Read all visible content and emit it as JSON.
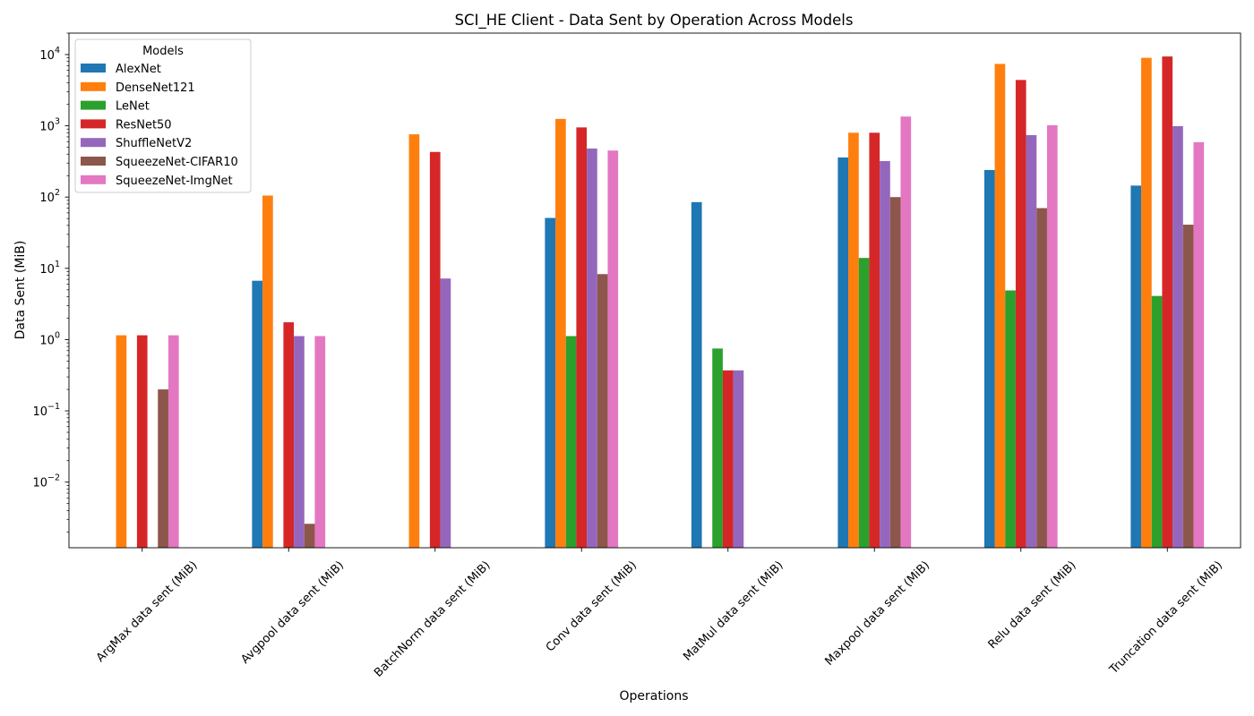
{
  "chart_data": {
    "type": "bar",
    "title": "SCI_HE Client - Data Sent by Operation Across Models",
    "xlabel": "Operations",
    "ylabel": "Data Sent (MiB)",
    "yscale": "log",
    "ylim": [
      0.0012,
      20000
    ],
    "legend_title": "Models",
    "legend_position": "top-left",
    "categories": [
      "ArgMax data sent (MiB)",
      "Avgpool data sent (MiB)",
      "BatchNorm data sent (MiB)",
      "Conv data sent (MiB)",
      "MatMul data sent (MiB)",
      "Maxpool data sent (MiB)",
      "Relu data sent (MiB)",
      "Truncation data sent (MiB)"
    ],
    "y_ticks": [
      {
        "value": 0.01,
        "base": "10",
        "exp": "−2"
      },
      {
        "value": 0.1,
        "base": "10",
        "exp": "−1"
      },
      {
        "value": 1,
        "base": "10",
        "exp": "0"
      },
      {
        "value": 10,
        "base": "10",
        "exp": "1"
      },
      {
        "value": 100,
        "base": "10",
        "exp": "2"
      },
      {
        "value": 1000,
        "base": "10",
        "exp": "3"
      },
      {
        "value": 10000,
        "base": "10",
        "exp": "4"
      }
    ],
    "series": [
      {
        "name": "AlexNet",
        "color": "#1f77b4",
        "values": [
          null,
          6.7,
          null,
          51,
          85,
          360,
          240,
          145
        ]
      },
      {
        "name": "DenseNet121",
        "color": "#ff7f0e",
        "values": [
          1.15,
          105,
          760,
          1250,
          null,
          800,
          7400,
          9000
        ]
      },
      {
        "name": "LeNet",
        "color": "#2ca02c",
        "values": [
          null,
          null,
          null,
          1.12,
          0.75,
          14,
          4.9,
          4.1
        ]
      },
      {
        "name": "ResNet50",
        "color": "#d62728",
        "values": [
          1.15,
          1.75,
          430,
          950,
          0.37,
          800,
          4400,
          9400
        ]
      },
      {
        "name": "ShuffleNetV2",
        "color": "#9467bd",
        "values": [
          null,
          1.12,
          7.2,
          480,
          0.37,
          320,
          740,
          990
        ]
      },
      {
        "name": "SqueezeNet-CIFAR10",
        "color": "#8c564b",
        "values": [
          0.2,
          0.0026,
          null,
          8.3,
          null,
          100,
          70,
          41
        ]
      },
      {
        "name": "SqueezeNet-ImgNet",
        "color": "#e377c2",
        "values": [
          1.15,
          1.12,
          null,
          450,
          null,
          1350,
          1020,
          590
        ]
      }
    ]
  }
}
